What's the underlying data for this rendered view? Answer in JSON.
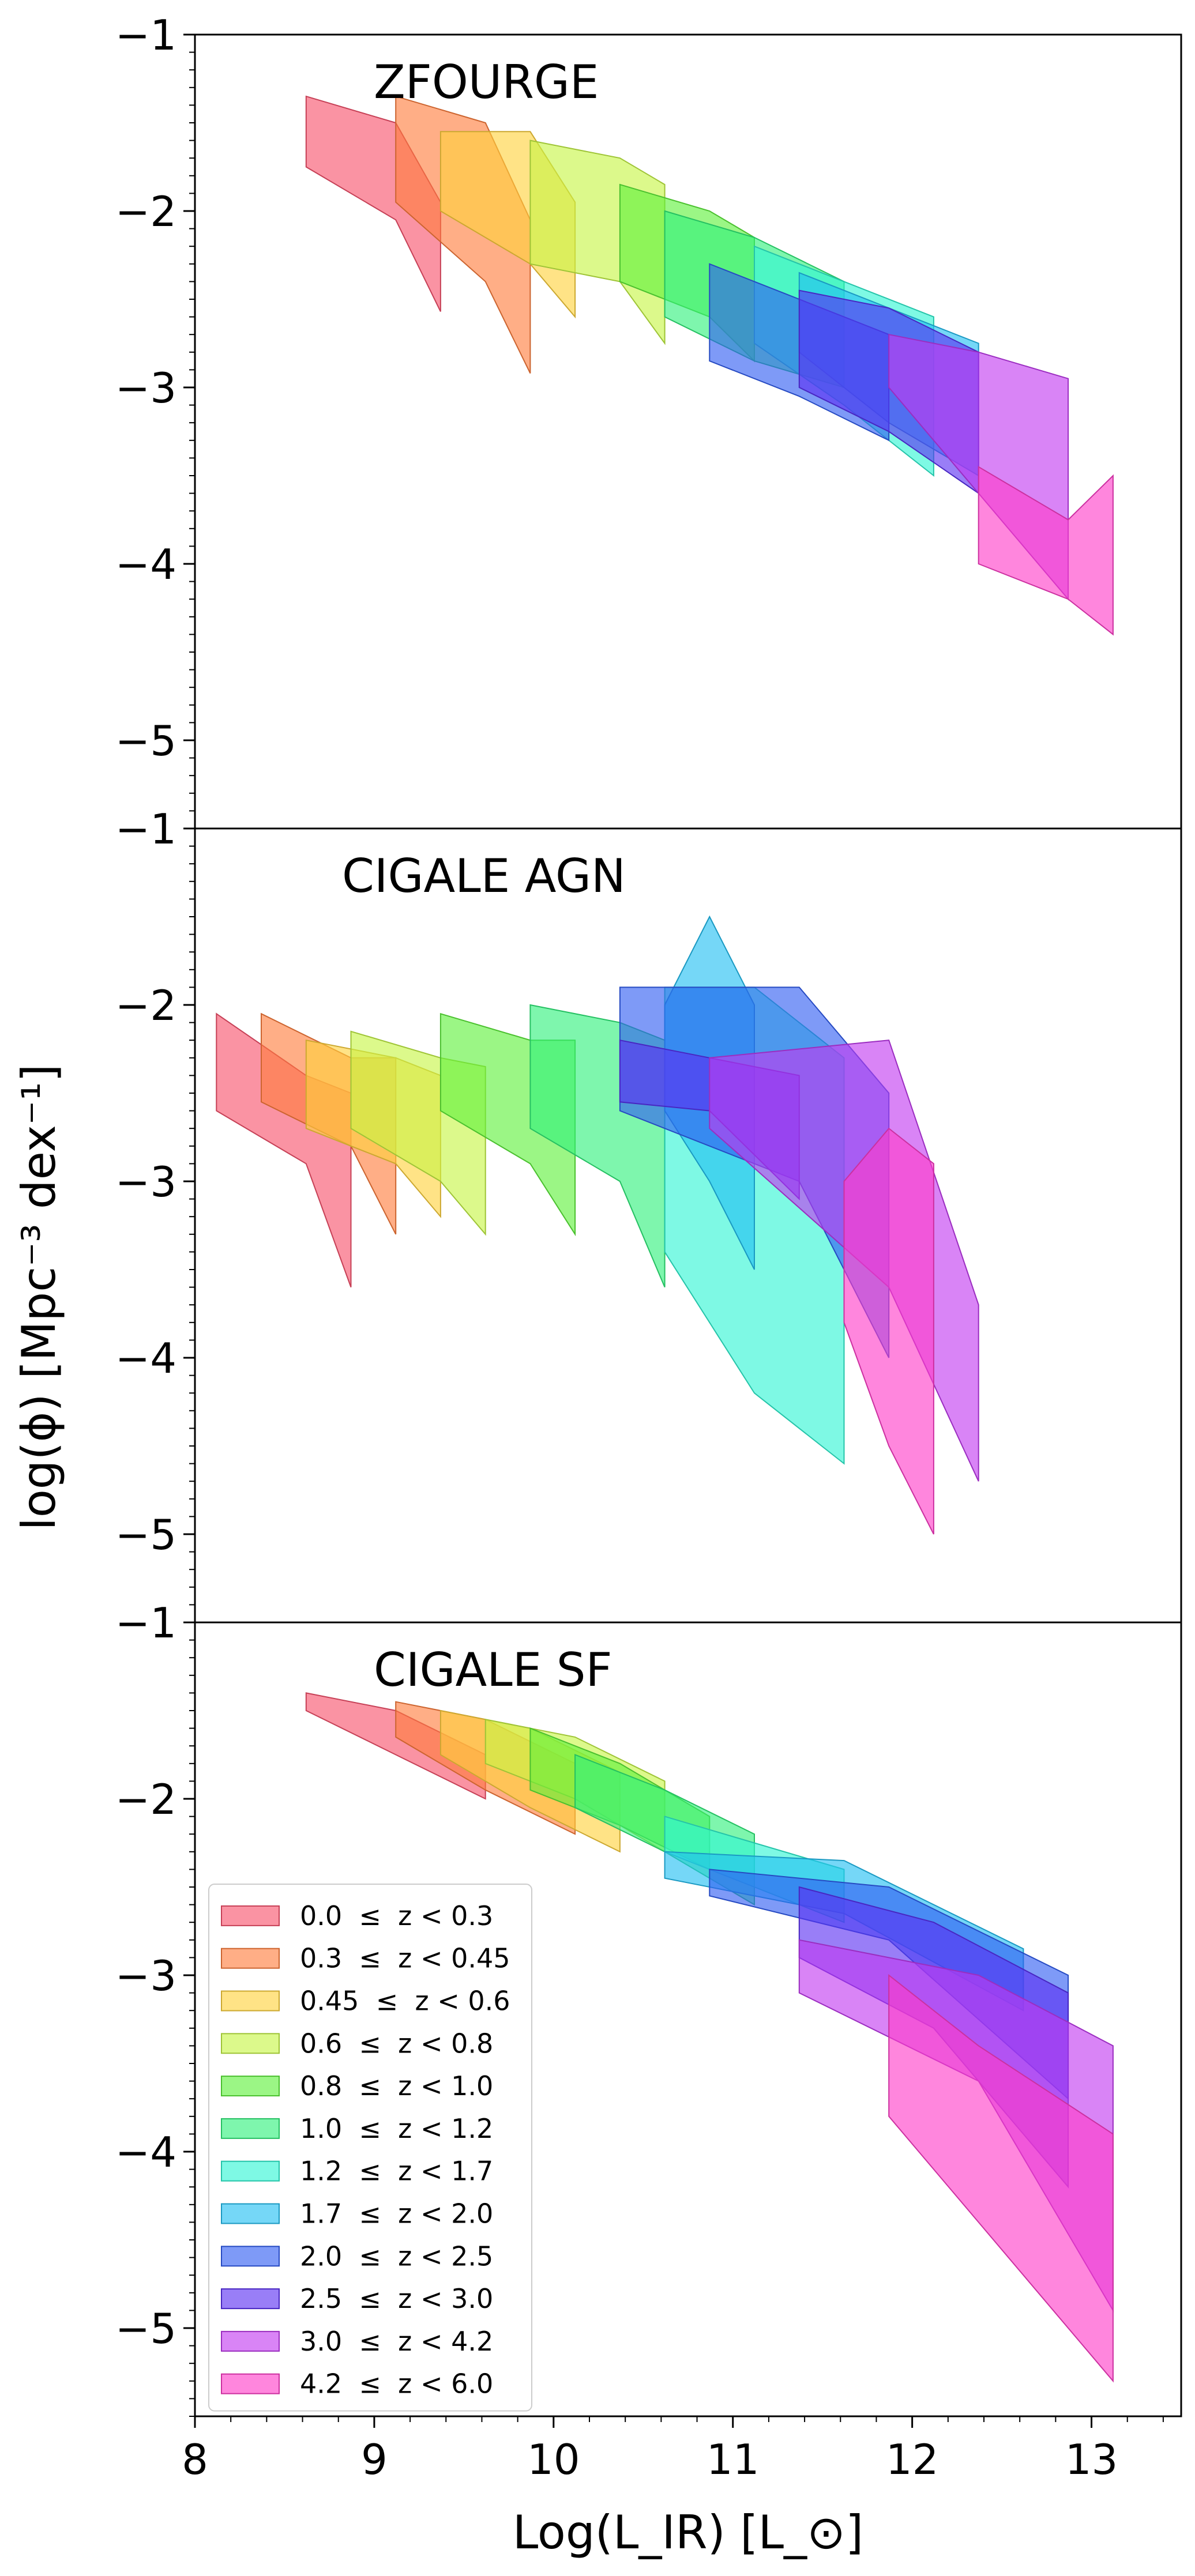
{
  "figure": {
    "xlabel": "Log(L_IR) [L_⊙]",
    "ylabel": "log(ϕ) [Mpc⁻³ dex⁻¹]",
    "xlim": [
      8.0,
      13.5
    ],
    "ylim": [
      -5.5,
      -1.0
    ],
    "x_ticks": [
      8,
      9,
      10,
      11,
      12,
      13
    ],
    "y_ticks": [
      -1,
      -2,
      -3,
      -4,
      -5
    ],
    "y_tick_labels": [
      "−1",
      "−2",
      "−3",
      "−4",
      "−5"
    ]
  },
  "legend": {
    "location": "lower left of bottom panel",
    "entries": [
      {
        "label": "0.0  ≤  z < 0.3",
        "color": "#f7506b"
      },
      {
        "label": "0.3  ≤  z < 0.45",
        "color": "#ff7d3b"
      },
      {
        "label": "0.45  ≤  z < 0.6",
        "color": "#ffd23c"
      },
      {
        "label": "0.6  ≤  z < 0.8",
        "color": "#c6f543"
      },
      {
        "label": "0.8  ≤  z < 1.0",
        "color": "#5df03a"
      },
      {
        "label": "1.0  ≤  z < 1.2",
        "color": "#2ef07a"
      },
      {
        "label": "1.2  ≤  z < 1.7",
        "color": "#2ef5d3"
      },
      {
        "label": "1.7  ≤  z < 2.0",
        "color": "#20bff2"
      },
      {
        "label": "2.0  ≤  z < 2.5",
        "color": "#2f5cf2"
      },
      {
        "label": "2.5  ≤  z < 3.0",
        "color": "#5a2ff2"
      },
      {
        "label": "3.0  ≤  z < 4.2",
        "color": "#c238f0"
      },
      {
        "label": "4.2  ≤  z < 6.0",
        "color": "#ff3cc8"
      }
    ]
  },
  "chart_data": [
    {
      "type": "area",
      "title": "ZFOURGE",
      "xlabel": "",
      "ylabel": "",
      "xlim": [
        8.0,
        13.5
      ],
      "ylim": [
        -5.5,
        -1.0
      ],
      "series": [
        {
          "name": "0.0 ≤ z < 0.3",
          "x": [
            8.62,
            9.12,
            9.37
          ],
          "lower": [
            -1.75,
            -2.05,
            -2.57
          ],
          "upper": [
            -1.35,
            -1.5,
            -1.95
          ]
        },
        {
          "name": "0.3 ≤ z < 0.45",
          "x": [
            9.12,
            9.62,
            9.87
          ],
          "lower": [
            -1.95,
            -2.4,
            -2.92
          ],
          "upper": [
            -1.35,
            -1.5,
            -2.05
          ]
        },
        {
          "name": "0.45 ≤ z < 0.6",
          "x": [
            9.37,
            9.87,
            10.12
          ],
          "lower": [
            -2.0,
            -2.3,
            -2.6
          ],
          "upper": [
            -1.55,
            -1.55,
            -1.95
          ]
        },
        {
          "name": "0.6 ≤ z < 0.8",
          "x": [
            9.87,
            10.37,
            10.62
          ],
          "lower": [
            -2.3,
            -2.4,
            -2.75
          ],
          "upper": [
            -1.6,
            -1.7,
            -1.85
          ]
        },
        {
          "name": "0.8 ≤ z < 1.0",
          "x": [
            10.37,
            10.87,
            11.12
          ],
          "lower": [
            -2.4,
            -2.6,
            -2.85
          ],
          "upper": [
            -1.85,
            -2.0,
            -2.15
          ]
        },
        {
          "name": "1.0 ≤ z < 1.2",
          "x": [
            10.62,
            11.12,
            11.62
          ],
          "lower": [
            -2.6,
            -2.85,
            -3.0
          ],
          "upper": [
            -2.0,
            -2.15,
            -2.4
          ]
        },
        {
          "name": "1.2 ≤ z < 1.7",
          "x": [
            11.12,
            11.62,
            12.12
          ],
          "lower": [
            -2.75,
            -3.1,
            -3.5
          ],
          "upper": [
            -2.2,
            -2.4,
            -2.6
          ]
        },
        {
          "name": "1.7 ≤ z < 2.0",
          "x": [
            11.37,
            11.87,
            12.37
          ],
          "lower": [
            -2.8,
            -3.2,
            -3.5
          ],
          "upper": [
            -2.35,
            -2.55,
            -2.75
          ]
        },
        {
          "name": "2.0 ≤ z < 2.5",
          "x": [
            10.87,
            11.37,
            11.87
          ],
          "lower": [
            -2.85,
            -3.05,
            -3.3
          ],
          "upper": [
            -2.3,
            -2.5,
            -2.7
          ]
        },
        {
          "name": "2.5 ≤ z < 3.0",
          "x": [
            11.37,
            11.87,
            12.37
          ],
          "lower": [
            -3.0,
            -3.25,
            -3.6
          ],
          "upper": [
            -2.45,
            -2.55,
            -2.8
          ]
        },
        {
          "name": "3.0 ≤ z < 4.2",
          "x": [
            11.87,
            12.37,
            12.87
          ],
          "lower": [
            -3.0,
            -3.6,
            -4.2
          ],
          "upper": [
            -2.7,
            -2.8,
            -2.95
          ]
        },
        {
          "name": "4.2 ≤ z < 6.0",
          "x": [
            12.37,
            12.87,
            13.12
          ],
          "lower": [
            -4.0,
            -4.2,
            -4.4
          ],
          "upper": [
            -3.45,
            -3.75,
            -3.5
          ]
        }
      ]
    },
    {
      "type": "area",
      "title": "CIGALE AGN",
      "xlabel": "",
      "ylabel": "",
      "xlim": [
        8.0,
        13.5
      ],
      "ylim": [
        -5.5,
        -1.0
      ],
      "series": [
        {
          "name": "0.0 ≤ z < 0.3",
          "x": [
            8.12,
            8.62,
            8.87
          ],
          "lower": [
            -2.6,
            -2.9,
            -3.6
          ],
          "upper": [
            -2.05,
            -2.4,
            -2.5
          ]
        },
        {
          "name": "0.3 ≤ z < 0.45",
          "x": [
            8.37,
            8.87,
            9.12
          ],
          "lower": [
            -2.55,
            -2.8,
            -3.3
          ],
          "upper": [
            -2.05,
            -2.3,
            -2.3
          ]
        },
        {
          "name": "0.45 ≤ z < 0.6",
          "x": [
            8.62,
            9.12,
            9.37
          ],
          "lower": [
            -2.7,
            -2.9,
            -3.2
          ],
          "upper": [
            -2.2,
            -2.3,
            -2.4
          ]
        },
        {
          "name": "0.6 ≤ z < 0.8",
          "x": [
            8.87,
            9.37,
            9.62
          ],
          "lower": [
            -2.7,
            -3.0,
            -3.3
          ],
          "upper": [
            -2.15,
            -2.3,
            -2.35
          ]
        },
        {
          "name": "0.8 ≤ z < 1.0",
          "x": [
            9.37,
            9.87,
            10.12
          ],
          "lower": [
            -2.6,
            -2.9,
            -3.3
          ],
          "upper": [
            -2.05,
            -2.2,
            -2.2
          ]
        },
        {
          "name": "1.0 ≤ z < 1.2",
          "x": [
            9.87,
            10.37,
            10.62
          ],
          "lower": [
            -2.7,
            -3.0,
            -3.6
          ],
          "upper": [
            -2.0,
            -2.1,
            -2.2
          ]
        },
        {
          "name": "1.2 ≤ z < 1.7",
          "x": [
            10.62,
            11.12,
            11.62
          ],
          "lower": [
            -3.4,
            -4.2,
            -4.6
          ],
          "upper": [
            -1.9,
            -1.9,
            -2.3
          ]
        },
        {
          "name": "1.7 ≤ z < 2.0",
          "x": [
            10.62,
            10.87,
            11.12
          ],
          "lower": [
            -2.6,
            -3.0,
            -3.5
          ],
          "upper": [
            -2.0,
            -1.5,
            -2.0
          ]
        },
        {
          "name": "2.0 ≤ z < 2.5",
          "x": [
            10.37,
            11.37,
            11.87
          ],
          "lower": [
            -2.6,
            -3.0,
            -4.0
          ],
          "upper": [
            -1.9,
            -1.9,
            -2.5
          ]
        },
        {
          "name": "2.5 ≤ z < 3.0",
          "x": [
            10.37,
            10.87,
            11.37
          ],
          "lower": [
            -2.55,
            -2.6,
            -3.1
          ],
          "upper": [
            -2.2,
            -2.3,
            -2.4
          ]
        },
        {
          "name": "3.0 ≤ z < 4.2",
          "x": [
            10.87,
            11.87,
            12.37
          ],
          "lower": [
            -2.7,
            -3.6,
            -4.7
          ],
          "upper": [
            -2.3,
            -2.2,
            -3.7
          ]
        },
        {
          "name": "4.2 ≤ z < 6.0",
          "x": [
            11.62,
            11.87,
            12.12
          ],
          "lower": [
            -3.8,
            -4.5,
            -5.0
          ],
          "upper": [
            -3.0,
            -2.7,
            -2.9
          ]
        }
      ]
    },
    {
      "type": "area",
      "title": "CIGALE SF",
      "xlabel": "Log(L_IR) [L_⊙]",
      "ylabel": "",
      "xlim": [
        8.0,
        13.5
      ],
      "ylim": [
        -5.5,
        -1.0
      ],
      "series": [
        {
          "name": "0.0 ≤ z < 0.3",
          "x": [
            8.62,
            9.12,
            9.62
          ],
          "lower": [
            -1.5,
            -1.75,
            -2.0
          ],
          "upper": [
            -1.4,
            -1.5,
            -1.75
          ]
        },
        {
          "name": "0.3 ≤ z < 0.45",
          "x": [
            9.12,
            9.62,
            10.12
          ],
          "lower": [
            -1.65,
            -1.95,
            -2.2
          ],
          "upper": [
            -1.45,
            -1.55,
            -1.8
          ]
        },
        {
          "name": "0.45 ≤ z < 0.6",
          "x": [
            9.37,
            9.87,
            10.37
          ],
          "lower": [
            -1.75,
            -2.05,
            -2.3
          ],
          "upper": [
            -1.5,
            -1.6,
            -1.85
          ]
        },
        {
          "name": "0.6 ≤ z < 0.8",
          "x": [
            9.62,
            10.12,
            10.62
          ],
          "lower": [
            -1.8,
            -2.0,
            -2.3
          ],
          "upper": [
            -1.55,
            -1.65,
            -1.9
          ]
        },
        {
          "name": "0.8 ≤ z < 1.0",
          "x": [
            9.87,
            10.37,
            10.87
          ],
          "lower": [
            -1.95,
            -2.15,
            -2.4
          ],
          "upper": [
            -1.6,
            -1.8,
            -2.1
          ]
        },
        {
          "name": "1.0 ≤ z < 1.2",
          "x": [
            10.12,
            10.62,
            11.12
          ],
          "lower": [
            -2.05,
            -2.3,
            -2.6
          ],
          "upper": [
            -1.75,
            -1.95,
            -2.2
          ]
        },
        {
          "name": "1.2 ≤ z < 1.7",
          "x": [
            10.62,
            11.12,
            11.62
          ],
          "lower": [
            -2.3,
            -2.5,
            -2.7
          ],
          "upper": [
            -2.1,
            -2.25,
            -2.4
          ]
        },
        {
          "name": "1.7 ≤ z < 2.0",
          "x": [
            10.62,
            11.62,
            12.62
          ],
          "lower": [
            -2.45,
            -2.65,
            -3.2
          ],
          "upper": [
            -2.3,
            -2.35,
            -2.85
          ]
        },
        {
          "name": "2.0 ≤ z < 2.5",
          "x": [
            10.87,
            11.87,
            12.87
          ],
          "lower": [
            -2.55,
            -2.8,
            -3.7
          ],
          "upper": [
            -2.4,
            -2.5,
            -3.0
          ]
        },
        {
          "name": "2.5 ≤ z < 3.0",
          "x": [
            11.37,
            12.12,
            12.87
          ],
          "lower": [
            -2.9,
            -3.3,
            -4.2
          ],
          "upper": [
            -2.5,
            -2.7,
            -3.1
          ]
        },
        {
          "name": "3.0 ≤ z < 4.2",
          "x": [
            11.37,
            12.37,
            13.12
          ],
          "lower": [
            -3.1,
            -3.6,
            -4.9
          ],
          "upper": [
            -2.8,
            -3.0,
            -3.4
          ]
        },
        {
          "name": "4.2 ≤ z < 6.0",
          "x": [
            11.87,
            12.37,
            13.12
          ],
          "lower": [
            -3.8,
            -4.4,
            -5.3
          ],
          "upper": [
            -3.0,
            -3.4,
            -3.9
          ]
        }
      ]
    }
  ]
}
